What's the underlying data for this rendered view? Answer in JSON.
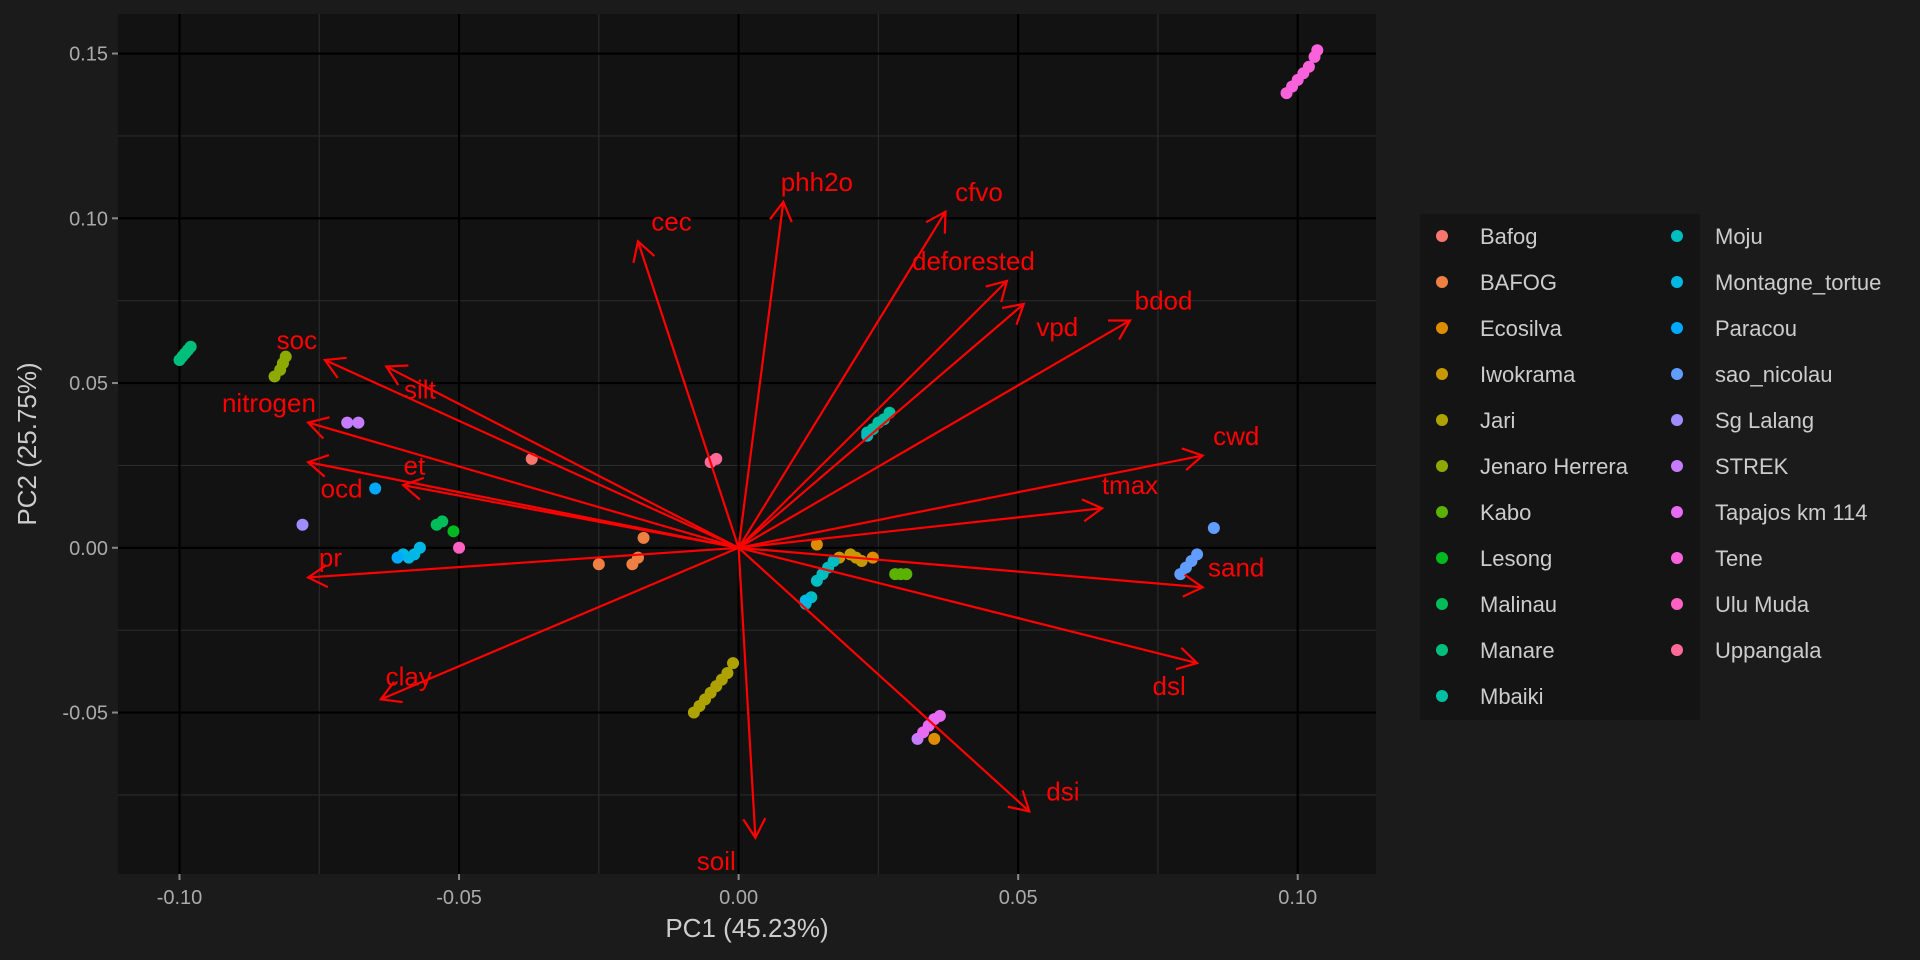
{
  "chart_data": {
    "type": "scatter",
    "title": "",
    "xlabel": "PC1 (45.23%)",
    "ylabel": "PC2 (25.75%)",
    "xlim": [
      -0.111,
      0.114
    ],
    "ylim": [
      -0.099,
      0.162
    ],
    "x_ticks": [
      -0.1,
      -0.05,
      0.0,
      0.05,
      0.1
    ],
    "x_tick_labels": [
      "-0.10",
      "-0.05",
      "0.00",
      "0.05",
      "0.10"
    ],
    "y_ticks": [
      -0.05,
      0.0,
      0.05,
      0.1,
      0.15
    ],
    "y_tick_labels": [
      "-0.05",
      "0.00",
      "0.05",
      "0.10",
      "0.15"
    ],
    "grid": true,
    "legend_position": "right",
    "colors": {
      "background": "#1b1b1b",
      "panel": "#121212",
      "grid_major": "#000000",
      "grid_minor": "#2a2a2a",
      "arrow": "#ff0000",
      "text": "#cccccc",
      "legend_bg": "#141414"
    },
    "series": [
      {
        "name": "Bafog",
        "color": "#F8766D",
        "points": [
          [
            -0.037,
            0.027
          ]
        ]
      },
      {
        "name": "BAFOG",
        "color": "#EE8043",
        "points": [
          [
            -0.025,
            -0.005
          ],
          [
            -0.019,
            -0.005
          ],
          [
            -0.018,
            -0.003
          ],
          [
            -0.017,
            0.003
          ]
        ]
      },
      {
        "name": "Ecosilva",
        "color": "#DE8C00",
        "points": [
          [
            0.014,
            0.001
          ],
          [
            0.024,
            -0.003
          ],
          [
            0.035,
            -0.058
          ]
        ]
      },
      {
        "name": "Iwokrama",
        "color": "#C79800",
        "points": [
          [
            0.018,
            -0.003
          ],
          [
            0.02,
            -0.002
          ],
          [
            0.021,
            -0.003
          ],
          [
            0.022,
            -0.004
          ]
        ]
      },
      {
        "name": "Jari",
        "color": "#AEA200",
        "points": [
          [
            -0.008,
            -0.05
          ],
          [
            -0.007,
            -0.048
          ],
          [
            -0.006,
            -0.046
          ],
          [
            -0.005,
            -0.044
          ],
          [
            -0.004,
            -0.042
          ],
          [
            -0.003,
            -0.04
          ],
          [
            -0.002,
            -0.038
          ],
          [
            -0.001,
            -0.035
          ]
        ]
      },
      {
        "name": "Jenaro Herrera",
        "color": "#8DAA00",
        "points": [
          [
            -0.083,
            0.052
          ],
          [
            -0.082,
            0.054
          ],
          [
            -0.0815,
            0.056
          ],
          [
            -0.081,
            0.058
          ]
        ]
      },
      {
        "name": "Kabo",
        "color": "#5BB300",
        "points": [
          [
            0.028,
            -0.008
          ],
          [
            0.029,
            -0.008
          ],
          [
            0.03,
            -0.008
          ]
        ]
      },
      {
        "name": "Lesong",
        "color": "#00B81F",
        "points": [
          [
            -0.051,
            0.005
          ]
        ]
      },
      {
        "name": "Malinau",
        "color": "#00BC59",
        "points": [
          [
            -0.054,
            0.007
          ],
          [
            -0.053,
            0.008
          ]
        ]
      },
      {
        "name": "Manare",
        "color": "#00BF7D",
        "points": [
          [
            -0.1,
            0.057
          ],
          [
            -0.0995,
            0.058
          ],
          [
            -0.099,
            0.059
          ],
          [
            -0.0985,
            0.06
          ],
          [
            -0.098,
            0.061
          ]
        ]
      },
      {
        "name": "Mbaiki",
        "color": "#00C0A3",
        "points": [
          [
            0.023,
            0.035
          ],
          [
            0.024,
            0.036
          ],
          [
            0.025,
            0.038
          ],
          [
            0.026,
            0.039
          ],
          [
            0.027,
            0.041
          ]
        ]
      },
      {
        "name": "Moju",
        "color": "#00BDC2",
        "points": [
          [
            0.012,
            -0.017
          ],
          [
            0.013,
            -0.015
          ],
          [
            0.014,
            -0.01
          ],
          [
            0.015,
            -0.008
          ],
          [
            0.016,
            -0.006
          ],
          [
            0.017,
            -0.004
          ],
          [
            0.023,
            0.034
          ]
        ]
      },
      {
        "name": "Montagne_tortue",
        "color": "#00B8E5",
        "points": [
          [
            -0.06,
            -0.002
          ],
          [
            -0.059,
            -0.003
          ],
          [
            -0.058,
            -0.002
          ],
          [
            -0.057,
            0.0
          ],
          [
            0.012,
            -0.016
          ]
        ]
      },
      {
        "name": "Paracou",
        "color": "#00A9FF",
        "points": [
          [
            -0.065,
            0.018
          ],
          [
            -0.061,
            -0.003
          ]
        ]
      },
      {
        "name": "sao_nicolau",
        "color": "#619CFF",
        "points": [
          [
            0.079,
            -0.008
          ],
          [
            0.08,
            -0.006
          ],
          [
            0.081,
            -0.004
          ],
          [
            0.082,
            -0.002
          ],
          [
            0.085,
            0.006
          ]
        ]
      },
      {
        "name": "Sg Lalang",
        "color": "#9F8CFF",
        "points": [
          [
            -0.078,
            0.007
          ]
        ]
      },
      {
        "name": "STREK",
        "color": "#C77CFF",
        "points": [
          [
            -0.07,
            0.038
          ],
          [
            -0.068,
            0.038
          ],
          [
            0.032,
            -0.058
          ]
        ]
      },
      {
        "name": "Tapajos km 114",
        "color": "#E76BF3",
        "points": [
          [
            0.033,
            -0.056
          ],
          [
            0.034,
            -0.054
          ],
          [
            0.035,
            -0.052
          ],
          [
            0.036,
            -0.051
          ]
        ]
      },
      {
        "name": "Tene",
        "color": "#FA62DB",
        "points": [
          [
            0.098,
            0.138
          ],
          [
            0.099,
            0.14
          ],
          [
            0.1,
            0.142
          ],
          [
            0.101,
            0.144
          ],
          [
            0.102,
            0.146
          ],
          [
            0.103,
            0.149
          ],
          [
            0.1035,
            0.151
          ]
        ]
      },
      {
        "name": "Ulu Muda",
        "color": "#FF61C3",
        "points": [
          [
            -0.05,
            0.0
          ]
        ]
      },
      {
        "name": "Uppangala",
        "color": "#FF6A98",
        "points": [
          [
            -0.005,
            0.026
          ],
          [
            -0.004,
            0.027
          ]
        ]
      }
    ],
    "arrows": [
      {
        "label": "phh2o",
        "x": 0.008,
        "y": 0.105,
        "lx": 0.014,
        "ly": 0.111
      },
      {
        "label": "cec",
        "x": -0.018,
        "y": 0.093,
        "lx": -0.012,
        "ly": 0.099
      },
      {
        "label": "cfvo",
        "x": 0.037,
        "y": 0.102,
        "lx": 0.043,
        "ly": 0.108
      },
      {
        "label": "deforested",
        "x": 0.048,
        "y": 0.081,
        "lx": 0.042,
        "ly": 0.087
      },
      {
        "label": "vpd",
        "x": 0.051,
        "y": 0.074,
        "lx": 0.057,
        "ly": 0.067
      },
      {
        "label": "bdod",
        "x": 0.07,
        "y": 0.069,
        "lx": 0.076,
        "ly": 0.075
      },
      {
        "label": "cwd",
        "x": 0.083,
        "y": 0.028,
        "lx": 0.089,
        "ly": 0.034
      },
      {
        "label": "tmax",
        "x": 0.065,
        "y": 0.012,
        "lx": 0.07,
        "ly": 0.019
      },
      {
        "label": "sand",
        "x": 0.083,
        "y": -0.012,
        "lx": 0.089,
        "ly": -0.006
      },
      {
        "label": "dsl",
        "x": 0.082,
        "y": -0.035,
        "lx": 0.077,
        "ly": -0.042
      },
      {
        "label": "dsi",
        "x": 0.052,
        "y": -0.08,
        "lx": 0.058,
        "ly": -0.074
      },
      {
        "label": "soil",
        "x": 0.003,
        "y": -0.088,
        "lx": -0.004,
        "ly": -0.095
      },
      {
        "label": "clay",
        "x": -0.064,
        "y": -0.046,
        "lx": -0.059,
        "ly": -0.039
      },
      {
        "label": "pr",
        "x": -0.077,
        "y": -0.009,
        "lx": -0.073,
        "ly": -0.003
      },
      {
        "label": "ocd",
        "x": -0.077,
        "y": 0.026,
        "lx": -0.071,
        "ly": 0.018
      },
      {
        "label": "et",
        "x": -0.06,
        "y": 0.019,
        "lx": -0.058,
        "ly": 0.025
      },
      {
        "label": "nitrogen",
        "x": -0.077,
        "y": 0.038,
        "lx": -0.084,
        "ly": 0.044
      },
      {
        "label": "silt",
        "x": -0.063,
        "y": 0.055,
        "lx": -0.057,
        "ly": 0.048
      },
      {
        "label": "soc",
        "x": -0.074,
        "y": 0.057,
        "lx": -0.079,
        "ly": 0.063
      }
    ]
  }
}
